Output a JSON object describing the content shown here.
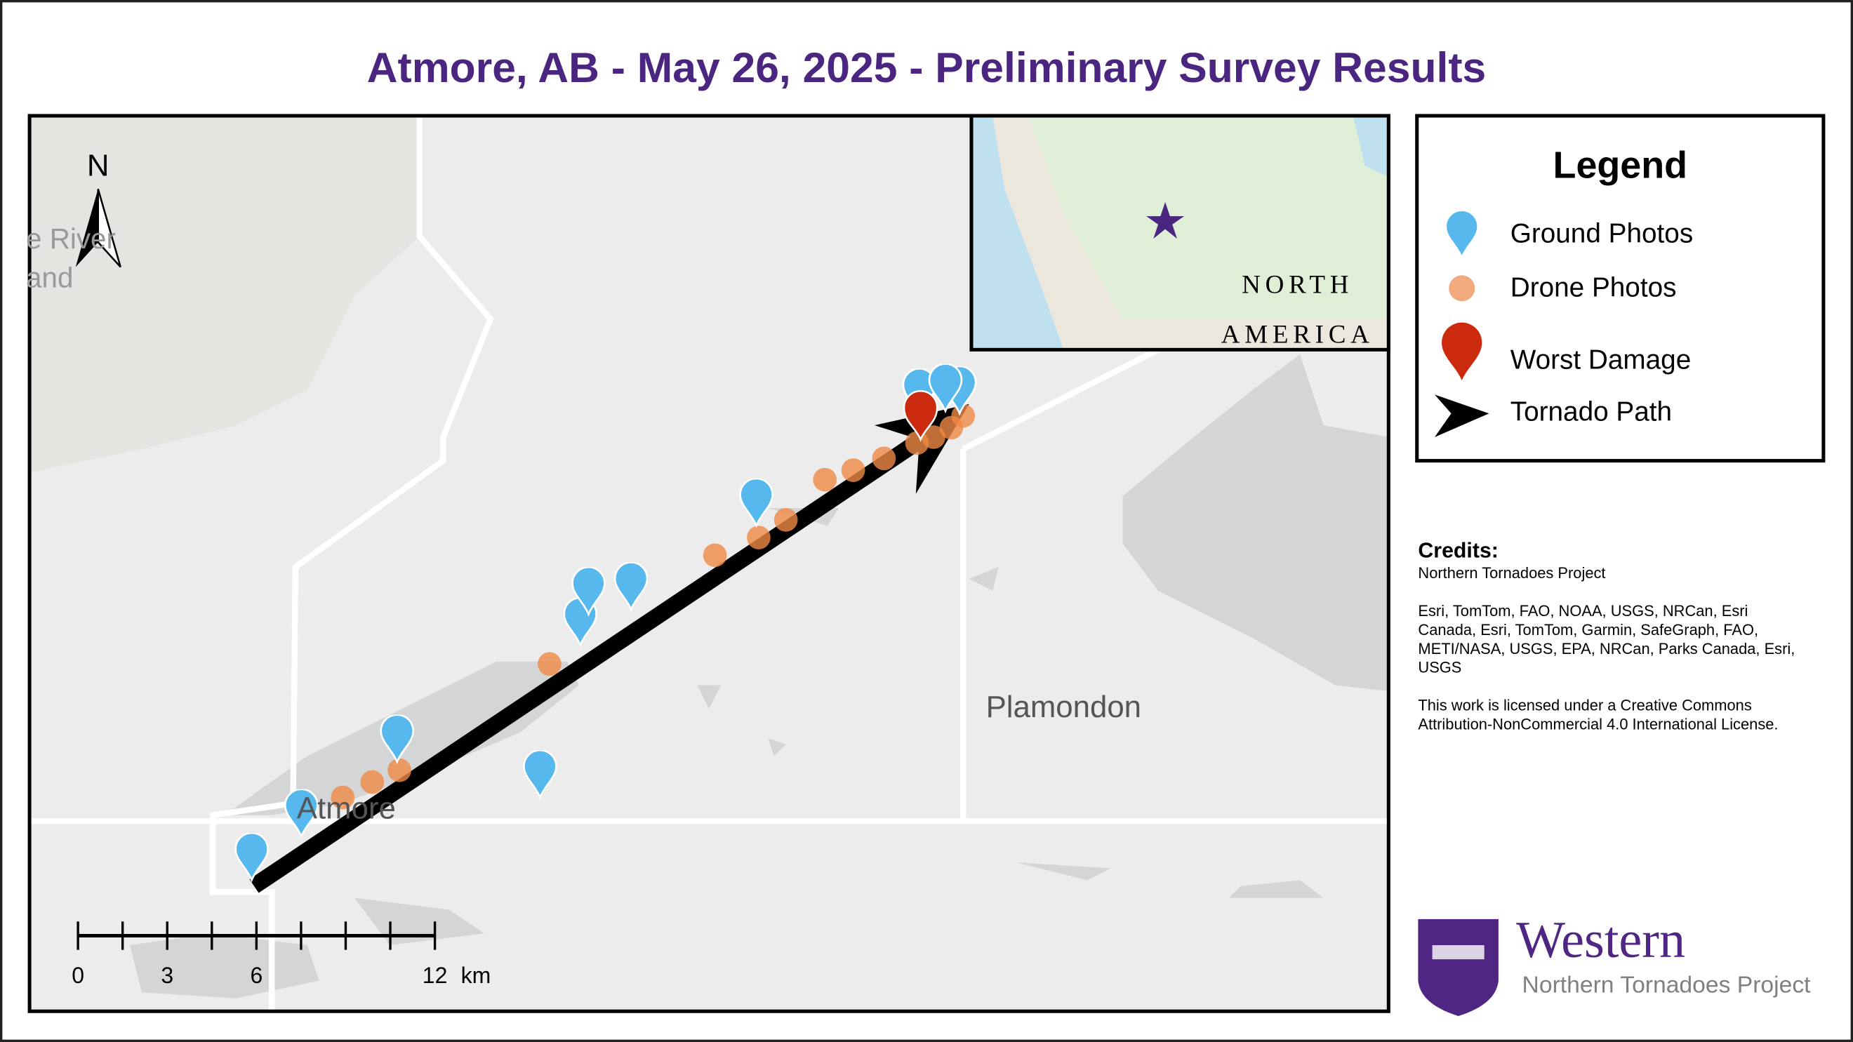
{
  "title": "Atmore, AB - May 26, 2025 - Preliminary Survey Results",
  "map": {
    "north_label": "N",
    "place_labels": [
      "e River",
      "and",
      "Atmore",
      "Plamondon"
    ],
    "scale": {
      "ticks": [
        0,
        3,
        6,
        12
      ],
      "unit": "km"
    },
    "inset": {
      "labels": [
        "NORTH",
        "AMERICA"
      ]
    }
  },
  "legend": {
    "title": "Legend",
    "items": [
      "Ground Photos",
      "Drone Photos",
      "Worst Damage",
      "Tornado Path"
    ]
  },
  "credits": {
    "heading": "Credits:",
    "lines": [
      "Northern Tornadoes Project",
      "",
      "Esri, TomTom, FAO, NOAA, USGS, NRCan, Esri",
      "Canada, Esri, TomTom, Garmin, SafeGraph, FAO,",
      "METI/NASA, USGS, EPA, NRCan, Parks Canada, Esri,",
      "USGS",
      "",
      "This work is licensed under a Creative Commons",
      "Attribution-NonCommercial 4.0 International License."
    ]
  },
  "logo": {
    "name": "Western",
    "subtitle": "Northern Tornadoes Project"
  }
}
